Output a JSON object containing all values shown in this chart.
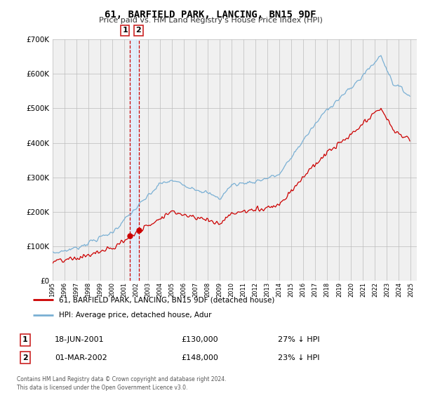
{
  "title": "61, BARFIELD PARK, LANCING, BN15 9DF",
  "subtitle": "Price paid vs. HM Land Registry's House Price Index (HPI)",
  "red_label": "61, BARFIELD PARK, LANCING, BN15 9DF (detached house)",
  "blue_label": "HPI: Average price, detached house, Adur",
  "transaction1_date": "18-JUN-2001",
  "transaction1_price": "£130,000",
  "transaction1_hpi": "27% ↓ HPI",
  "transaction2_date": "01-MAR-2002",
  "transaction2_price": "£148,000",
  "transaction2_hpi": "23% ↓ HPI",
  "footer": "Contains HM Land Registry data © Crown copyright and database right 2024.\nThis data is licensed under the Open Government Licence v3.0.",
  "ylim": [
    0,
    700000
  ],
  "yticks": [
    0,
    100000,
    200000,
    300000,
    400000,
    500000,
    600000,
    700000
  ],
  "red_color": "#cc0000",
  "blue_color": "#7ab0d4",
  "dashed_color": "#cc0000",
  "vband_color": "#ddeeff",
  "background_chart": "#f0f0f0",
  "background_fig": "#ffffff"
}
